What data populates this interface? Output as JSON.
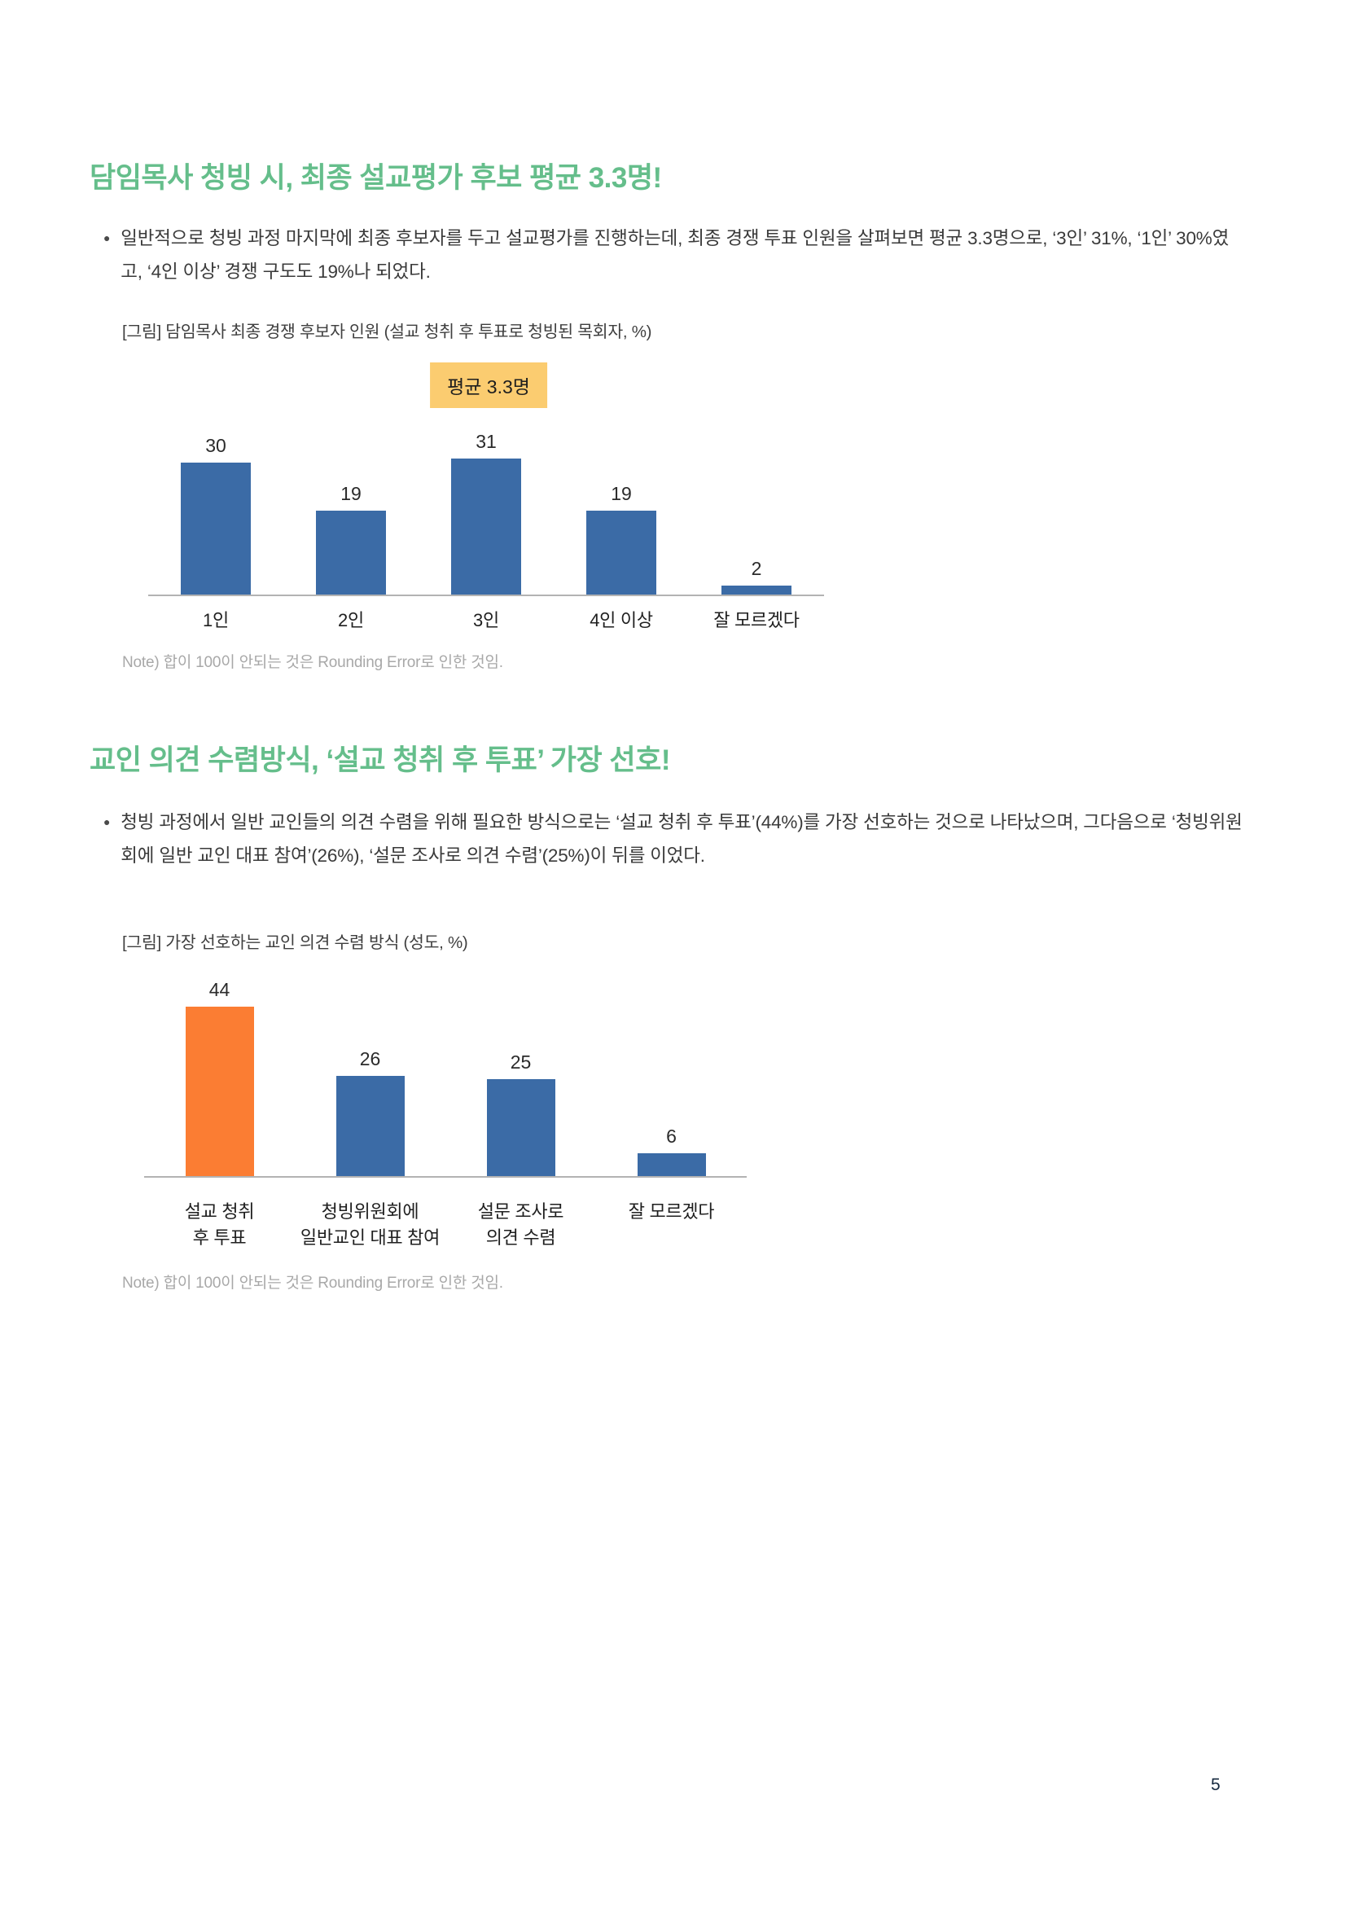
{
  "page": {
    "number": "5"
  },
  "colors": {
    "heading_green": "#65be8b",
    "bar_blue": "#3b6ba6",
    "bar_orange": "#fb7d33",
    "badge_yellow": "#fbcc70",
    "note_gray": "#a8a8a8"
  },
  "sections": [
    {
      "heading": "담임목사 청빙 시, 최종 설교평가 후보 평균 3.3명!",
      "bullet_text": "일반적으로 청빙 과정 마지막에 최종 후보자를 두고 설교평가를 진행하는데, 최종 경쟁 투표 인원을 살펴보면 평균 3.3명으로, ‘3인’ 31%, ‘1인’ 30%였고, ‘4인 이상’ 경쟁 구도도 19%나 되었다.",
      "figure_caption": "[그림] 담임목사 최종 경쟁 후보자 인원 (설교 청취 후 투표로 청빙된 목회자, %)",
      "note": "Note) 합이 100이 안되는 것은 Rounding Error로 인한 것임."
    },
    {
      "heading": "교인 의견 수렴방식, ‘설교 청취 후 투표’ 가장 선호!",
      "bullet_text": "청빙 과정에서 일반 교인들의 의견 수렴을 위해 필요한 방식으로는 ‘설교 청취 후 투표’(44%)를 가장 선호하는 것으로 나타났으며, 그다음으로 ‘청빙위원회에 일반 교인 대표 참여’(26%), ‘설문 조사로 의견 수렴’(25%)이 뒤를 이었다.",
      "figure_caption": "[그림] 가장 선호하는 교인 의견 수렴 방식 (성도, %)",
      "note": "Note) 합이 100이 안되는 것은 Rounding Error로 인한 것임."
    }
  ],
  "chart_data": [
    {
      "type": "bar",
      "title": "담임목사 최종 경쟁 후보자 인원 (설교 청취 후 투표로 청빙된 목회자, %)",
      "categories": [
        "1인",
        "2인",
        "3인",
        "4인 이상",
        "잘 모르겠다"
      ],
      "values": [
        30,
        19,
        31,
        19,
        2
      ],
      "bar_colors": [
        "#3b6ba6",
        "#3b6ba6",
        "#3b6ba6",
        "#3b6ba6",
        "#3b6ba6"
      ],
      "annotation": "평균 3.3명",
      "annotation_above_category": "3인",
      "value_labels": true,
      "xlabel": "",
      "ylabel": "%",
      "ylim": [
        0,
        35
      ],
      "grid": false,
      "legend": false
    },
    {
      "type": "bar",
      "title": "가장 선호하는 교인 의견 수렴 방식 (성도, %)",
      "categories": [
        "설교 청취\n후 투표",
        "청빙위원회에\n일반교인 대표 참여",
        "설문 조사로\n의견 수렴",
        "잘 모르겠다"
      ],
      "values": [
        44,
        26,
        25,
        6
      ],
      "bar_colors": [
        "#fb7d33",
        "#3b6ba6",
        "#3b6ba6",
        "#3b6ba6"
      ],
      "highlight_index": 0,
      "value_labels": true,
      "xlabel": "",
      "ylabel": "%",
      "ylim": [
        0,
        50
      ],
      "grid": false,
      "legend": false
    }
  ]
}
